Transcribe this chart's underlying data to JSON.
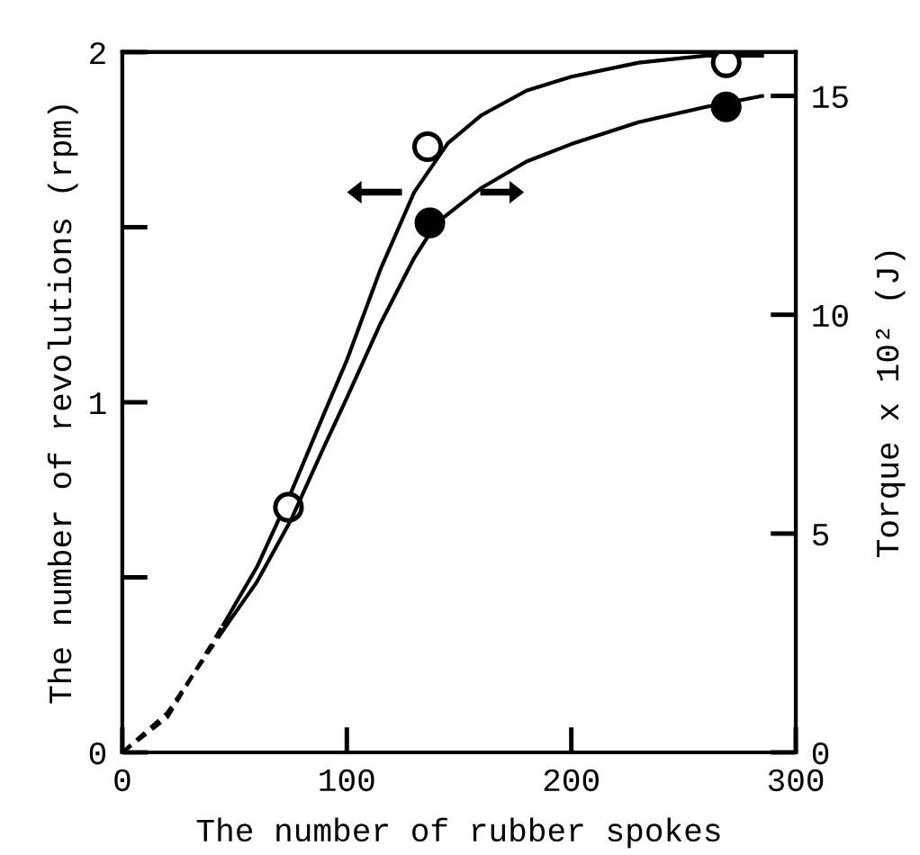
{
  "chart_data": {
    "type": "line",
    "xlabel": "The number of rubber spokes",
    "ylabel": "The number of revolutions (rpm)",
    "y2label": "Torque x 10² (J)",
    "xlim": [
      0,
      300
    ],
    "xticks": [
      0,
      100,
      200,
      300
    ],
    "ylim": [
      0,
      2
    ],
    "yticks": [
      0,
      {
        "value": 0.5,
        "label": null
      },
      1,
      {
        "value": 1.5,
        "label": null
      },
      2
    ],
    "y2lim": [
      0,
      16
    ],
    "y2ticks": [
      0,
      5,
      10,
      15
    ],
    "grid": false,
    "legend": false,
    "series": [
      {
        "color": "#000000",
        "line_style": "dashed",
        "marker": "none",
        "x": [
          0,
          20,
          45
        ],
        "values": [
          0,
          0.1,
          0.365
        ]
      },
      {
        "color": "#000000",
        "line_style": "solid",
        "marker": "none",
        "x": [
          45,
          60,
          75,
          90,
          100,
          115,
          130,
          145,
          160,
          180,
          200,
          230,
          260,
          285
        ],
        "values": [
          0.365,
          0.53,
          0.74,
          0.97,
          1.12,
          1.38,
          1.6,
          1.74,
          1.82,
          1.89,
          1.93,
          1.97,
          1.99,
          1.99
        ]
      },
      {
        "axis": "y2",
        "color": "#000000",
        "line_style": "dashed",
        "marker": "none",
        "x": [
          0,
          20,
          45
        ],
        "values": [
          0,
          0.9,
          2.8
        ]
      },
      {
        "axis": "y2",
        "color": "#000000",
        "line_style": "solid",
        "marker": "none",
        "x": [
          45,
          60,
          75,
          90,
          100,
          115,
          130,
          140,
          160,
          180,
          200,
          230,
          260,
          285
        ],
        "values": [
          2.8,
          3.9,
          5.3,
          7.0,
          8.1,
          9.8,
          11.3,
          12.1,
          12.9,
          13.5,
          13.9,
          14.4,
          14.75,
          15.0
        ]
      },
      {
        "type": "scatter",
        "color": "#ffffff",
        "marker": "circle",
        "x": [
          74,
          136,
          269
        ],
        "values": [
          0.7,
          1.73,
          1.97
        ]
      },
      {
        "type": "scatter",
        "axis": "y2",
        "color": "#000000",
        "marker": "circle",
        "x": [
          137,
          269
        ],
        "values": [
          12.1,
          14.75
        ]
      }
    ]
  }
}
